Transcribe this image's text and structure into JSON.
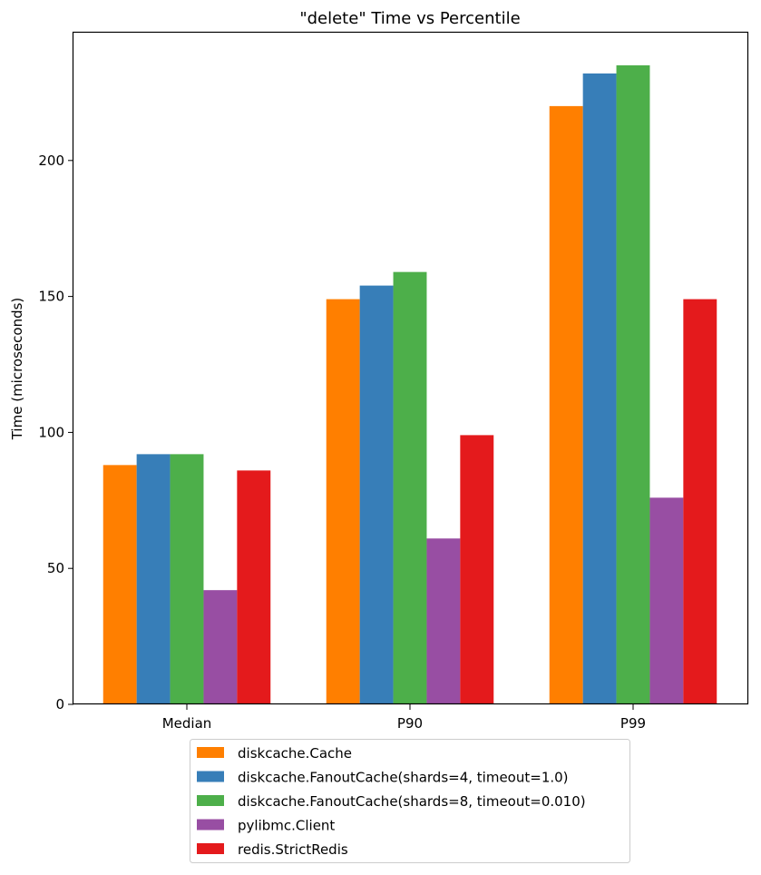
{
  "chart_data": {
    "type": "bar",
    "title": "\"delete\" Time vs Percentile",
    "xlabel": "",
    "ylabel": "Time (microseconds)",
    "ylim": [
      0,
      247
    ],
    "yticks": [
      0,
      50,
      100,
      150,
      200
    ],
    "categories": [
      "Median",
      "P90",
      "P99"
    ],
    "grid": false,
    "legend_position": "bottom-center",
    "series": [
      {
        "name": "diskcache.Cache",
        "color": "#ff7f00",
        "values": [
          88,
          149,
          220
        ]
      },
      {
        "name": "diskcache.FanoutCache(shards=4, timeout=1.0)",
        "color": "#377eb8",
        "values": [
          92,
          154,
          232
        ]
      },
      {
        "name": "diskcache.FanoutCache(shards=8, timeout=0.010)",
        "color": "#4daf4a",
        "values": [
          92,
          159,
          235
        ]
      },
      {
        "name": "pylibmc.Client",
        "color": "#984ea3",
        "values": [
          42,
          61,
          76
        ]
      },
      {
        "name": "redis.StrictRedis",
        "color": "#e41a1c",
        "values": [
          86,
          99,
          149
        ]
      }
    ]
  }
}
